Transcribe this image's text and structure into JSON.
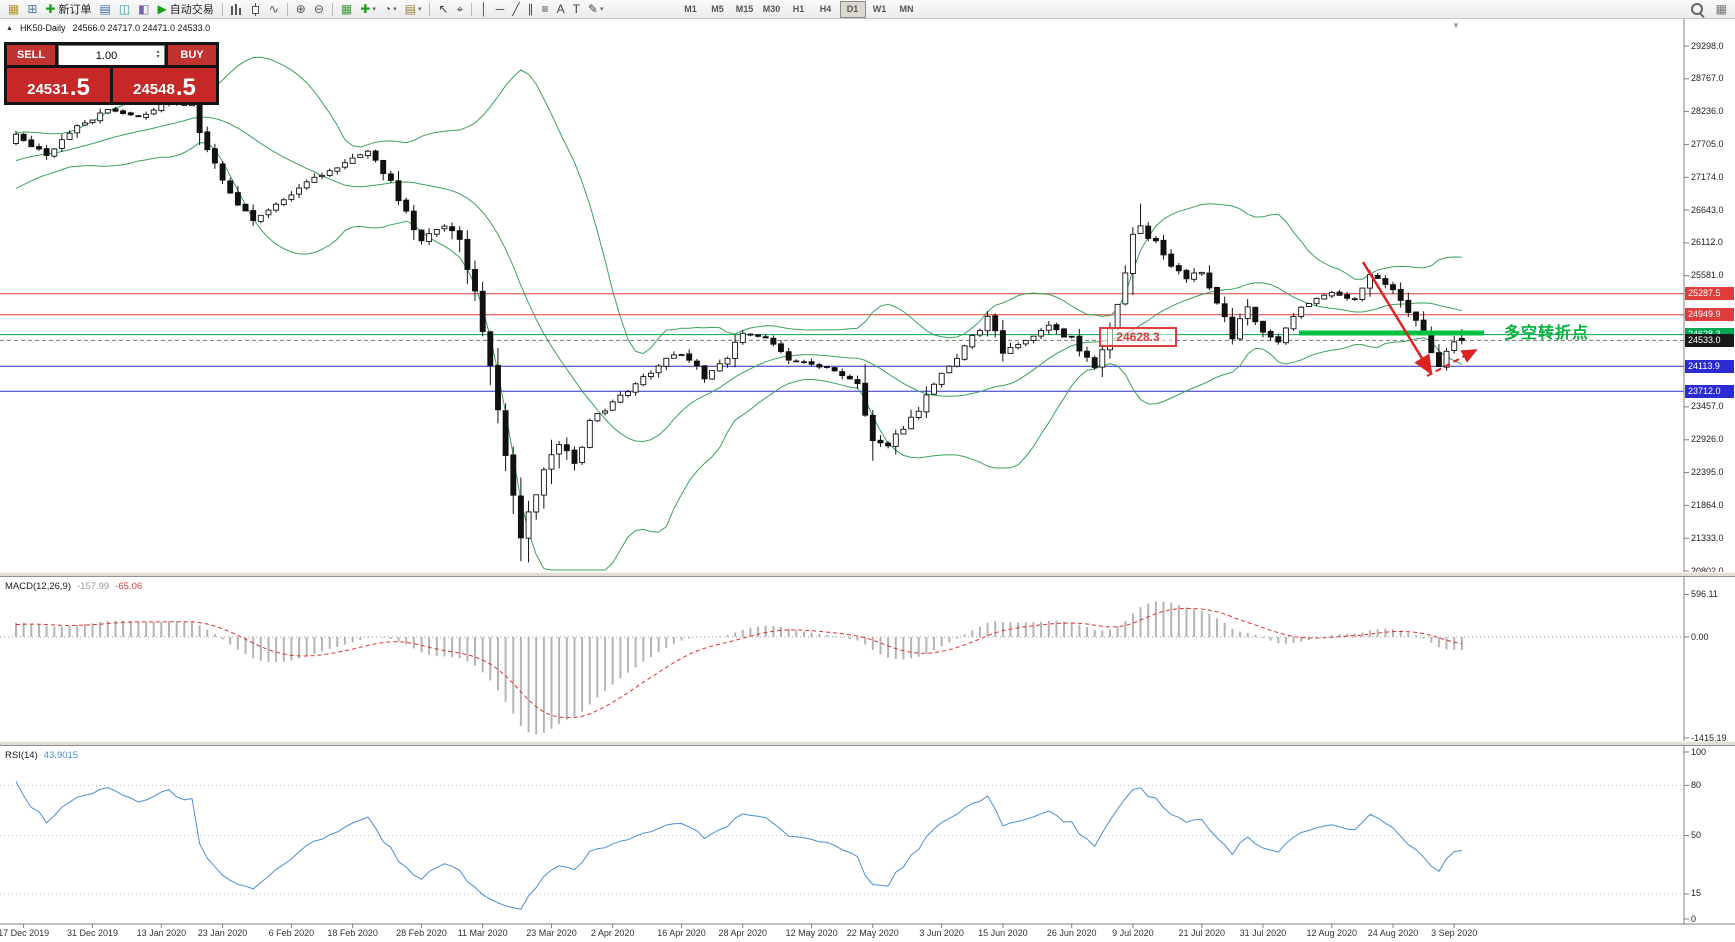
{
  "colors": {
    "bull": "#ffffff",
    "bear": "#111111",
    "outline": "#111111",
    "bollinger": "#3aa35a",
    "macd_hist": "#b4b4b4",
    "macd_signal": "#e03030",
    "rsi_line": "#4a8fd4",
    "red_line": "#e03c3c",
    "blue_line": "#2b2bd4",
    "green_line": "#00a651",
    "accent_green": "#00b33c",
    "arrow_red": "#dd2222",
    "axis_line": "#808080"
  },
  "toolbar": {
    "groups": [
      {
        "items": [
          {
            "name": "charts-window-icon",
            "glyph": "▦",
            "color": "#b8962e"
          },
          {
            "name": "new-chart-icon",
            "glyph": "⊞",
            "color": "#55779b"
          }
        ]
      },
      {
        "items": [
          {
            "name": "new-order-button",
            "glyph": "✚",
            "glyph_color": "#18a018",
            "label": "新订单"
          }
        ]
      },
      {
        "items": [
          {
            "name": "market-watch-icon",
            "glyph": "▤",
            "color": "#3a6fb0"
          },
          {
            "name": "data-window-icon",
            "glyph": "◫",
            "color": "#3a9f9f"
          },
          {
            "name": "navigator-icon",
            "glyph": "◧",
            "color": "#7a5fae"
          }
        ]
      },
      {
        "items": [
          {
            "name": "autotrading-button",
            "glyph": "▶",
            "glyph_color": "#18a018",
            "label": "自动交易"
          }
        ]
      },
      {
        "sep": true,
        "items": [
          {
            "name": "bar-chart-icon",
            "css": "mi-bars"
          },
          {
            "name": "candlestick-chart-icon",
            "css": "mi-candle"
          },
          {
            "name": "line-chart-icon",
            "glyph": "∿",
            "color": "#555555"
          }
        ]
      },
      {
        "sep": true,
        "items": [
          {
            "name": "zoom-in-icon",
            "glyph": "⊕",
            "color": "#555555"
          },
          {
            "name": "zoom-out-icon",
            "glyph": "⊖",
            "color": "#555555"
          }
        ]
      },
      {
        "sep": true,
        "items": [
          {
            "name": "tile-windows-icon",
            "glyph": "▦",
            "color": "#3f9e3f"
          },
          {
            "name": "indicators-button",
            "glyph": "✚",
            "color": "#18a018",
            "dropdown": true
          },
          {
            "name": "periods-button",
            "glyph": "◔",
            "color": "#555555",
            "dropdown": true
          },
          {
            "name": "templates-button",
            "glyph": "▤",
            "color": "#9a7f3a",
            "dropdown": true
          }
        ]
      },
      {
        "sep": true,
        "items": [
          {
            "name": "cursor-icon",
            "glyph": "↖",
            "color": "#444444"
          },
          {
            "name": "crosshair-icon",
            "glyph": "⌖",
            "color": "#444444"
          }
        ]
      },
      {
        "sep": true,
        "items": [
          {
            "name": "vertical-line-icon",
            "glyph": "│",
            "color": "#444444"
          },
          {
            "name": "horizontal-line-icon",
            "glyph": "─",
            "color": "#444444"
          },
          {
            "name": "trendline-icon",
            "glyph": "╱",
            "color": "#444444"
          },
          {
            "name": "channel-icon",
            "glyph": "∥",
            "color": "#444444"
          },
          {
            "name": "fibonacci-icon",
            "glyph": "≡",
            "color": "#444444"
          },
          {
            "name": "text-icon",
            "glyph": "A",
            "color": "#444444"
          },
          {
            "name": "label-icon",
            "glyph": "T",
            "color": "#444444"
          },
          {
            "name": "shapes-icon",
            "glyph": "✎",
            "color": "#444444",
            "dropdown": true
          }
        ]
      }
    ],
    "timeframes": {
      "items": [
        "M1",
        "M5",
        "M15",
        "M30",
        "H1",
        "H4",
        "D1",
        "W1",
        "MN"
      ],
      "active": "D1"
    },
    "right_icons": [
      {
        "name": "search-icon",
        "css": "mi-search"
      },
      {
        "name": "layout-icon",
        "glyph": "▦",
        "color": "#777777"
      }
    ]
  },
  "chart": {
    "symbol_title": "HK50-Daily",
    "ohlc": "24566.0 24717.0 24471.0 24533.0",
    "collapse_icon": "▲",
    "shift_marker": "▼"
  },
  "trade_panel": {
    "sell_label": "SELL",
    "buy_label": "BUY",
    "volume": "1.00",
    "sell_price": "24531.5",
    "buy_price": "24548.5"
  },
  "price_axis": {
    "badges": [
      {
        "text": "25287.5",
        "price": 25287.5,
        "bg": "#e03c3c"
      },
      {
        "text": "24949.9",
        "price": 24949.9,
        "bg": "#e03c3c"
      },
      {
        "text": "24628.3",
        "price": 24628.3,
        "bg": "#00a651"
      },
      {
        "text": "24533.0",
        "price": 24533.0,
        "bg": "#1a1a1a"
      },
      {
        "text": "24113.9",
        "price": 24113.9,
        "bg": "#2b2bd4"
      },
      {
        "text": "23712.0",
        "price": 23712.0,
        "bg": "#2b2bd4"
      }
    ]
  },
  "hlines": [
    {
      "price": 25287.5,
      "color": "#e03c3c",
      "style": "solid"
    },
    {
      "price": 24949.9,
      "color": "#e03c3c",
      "style": "solid"
    },
    {
      "price": 24628.3,
      "color": "#00a651",
      "style": "solid"
    },
    {
      "price": 24533.0,
      "color": "#777777",
      "style": "dashed"
    },
    {
      "price": 24113.9,
      "color": "#2b2bd4",
      "style": "solid"
    },
    {
      "price": 23712.0,
      "color": "#2b2bd4",
      "style": "solid"
    }
  ],
  "annotations": {
    "level_box_text": "24628.3",
    "cn_label_text": "多空转折点",
    "highlight_color": "#00c040"
  },
  "macd": {
    "name": "MACD(12,26,9)",
    "main_value": "-157.99",
    "signal_value": "-65.06",
    "axis_labels": [
      {
        "text": "596.11",
        "value": 596.11
      },
      {
        "text": "0.00",
        "value": 0
      },
      {
        "text": "-1415.19",
        "value": -1415.19
      }
    ]
  },
  "rsi": {
    "name": "RSI(14)",
    "value": "43.9015",
    "axis_labels": [
      {
        "text": "100",
        "value": 100
      },
      {
        "text": "80",
        "value": 80
      },
      {
        "text": "50",
        "value": 50
      },
      {
        "text": "15",
        "value": 15
      },
      {
        "text": "0",
        "value": 0
      }
    ],
    "levels": [
      80,
      50,
      15
    ]
  },
  "chart_data": {
    "type": "candlestick",
    "symbol": "HK50",
    "timeframe": "Daily",
    "current_ohlc": {
      "open": 24566.0,
      "high": 24717.0,
      "low": 24471.0,
      "close": 24533.0
    },
    "current_bid": 24531.5,
    "current_ask": 24548.5,
    "ylim": [
      20802.0,
      29298.0
    ],
    "y_tick_step": 531,
    "candle_count": 190,
    "x_dates": [
      "17 Dec 2019",
      "31 Dec 2019",
      "13 Jan 2020",
      "23 Jan 2020",
      "6 Feb 2020",
      "18 Feb 2020",
      "28 Feb 2020",
      "11 Mar 2020",
      "23 Mar 2020",
      "2 Apr 2020",
      "16 Apr 2020",
      "28 Apr 2020",
      "12 May 2020",
      "22 May 2020",
      "3 Jun 2020",
      "15 Jun 2020",
      "26 Jun 2020",
      "9 Jul 2020",
      "21 Jul 2020",
      "31 Jul 2020",
      "12 Aug 2020",
      "24 Aug 2020",
      "3 Sep 2020"
    ],
    "x_date_candle_indices": [
      1,
      10,
      19,
      27,
      36,
      44,
      53,
      61,
      70,
      78,
      87,
      95,
      104,
      112,
      121,
      129,
      138,
      146,
      155,
      163,
      172,
      180,
      188
    ],
    "close_waypoints": [
      [
        0,
        27850
      ],
      [
        4,
        27550
      ],
      [
        8,
        28000
      ],
      [
        12,
        28250
      ],
      [
        16,
        28150
      ],
      [
        20,
        28400
      ],
      [
        23,
        28300
      ],
      [
        25,
        27600
      ],
      [
        28,
        26900
      ],
      [
        31,
        26500
      ],
      [
        34,
        26700
      ],
      [
        38,
        27100
      ],
      [
        42,
        27350
      ],
      [
        46,
        27600
      ],
      [
        49,
        27100
      ],
      [
        53,
        26150
      ],
      [
        56,
        26400
      ],
      [
        58,
        26150
      ],
      [
        60,
        25300
      ],
      [
        61,
        24700
      ],
      [
        63,
        23400
      ],
      [
        64,
        22600
      ],
      [
        66,
        21400
      ],
      [
        67,
        21700
      ],
      [
        69,
        22500
      ],
      [
        71,
        22900
      ],
      [
        73,
        22500
      ],
      [
        75,
        23200
      ],
      [
        78,
        23550
      ],
      [
        81,
        23800
      ],
      [
        84,
        24150
      ],
      [
        87,
        24350
      ],
      [
        90,
        23950
      ],
      [
        93,
        24300
      ],
      [
        95,
        24650
      ],
      [
        98,
        24600
      ],
      [
        101,
        24200
      ],
      [
        104,
        24150
      ],
      [
        107,
        24050
      ],
      [
        110,
        23850
      ],
      [
        112,
        22930
      ],
      [
        114,
        22850
      ],
      [
        117,
        23250
      ],
      [
        121,
        23950
      ],
      [
        124,
        24400
      ],
      [
        127,
        24900
      ],
      [
        129,
        24350
      ],
      [
        132,
        24500
      ],
      [
        135,
        24750
      ],
      [
        138,
        24550
      ],
      [
        141,
        24100
      ],
      [
        144,
        25100
      ],
      [
        146,
        26200
      ],
      [
        147,
        26350
      ],
      [
        149,
        26100
      ],
      [
        151,
        25750
      ],
      [
        153,
        25550
      ],
      [
        155,
        25700
      ],
      [
        157,
        25150
      ],
      [
        159,
        24600
      ],
      [
        161,
        25050
      ],
      [
        163,
        24650
      ],
      [
        165,
        24500
      ],
      [
        167,
        24950
      ],
      [
        169,
        25150
      ],
      [
        172,
        25300
      ],
      [
        175,
        25150
      ],
      [
        177,
        25600
      ],
      [
        180,
        25400
      ],
      [
        182,
        25000
      ],
      [
        184,
        24650
      ],
      [
        186,
        24150
      ],
      [
        187,
        24300
      ],
      [
        188,
        24500
      ],
      [
        189,
        24533
      ]
    ],
    "horizontal_levels": [
      25287.5,
      24949.9,
      24628.3,
      24113.9,
      23712.0
    ],
    "indicators": [
      {
        "name": "Bollinger Bands",
        "params": "(20,2)"
      },
      {
        "name": "MACD",
        "params": "(12,26,9)",
        "main": -157.99,
        "signal": -65.06,
        "range": [
          -1415.19,
          596.11
        ]
      },
      {
        "name": "RSI",
        "params": "(14)",
        "value": 43.9015,
        "range": [
          0,
          100
        ]
      }
    ]
  }
}
